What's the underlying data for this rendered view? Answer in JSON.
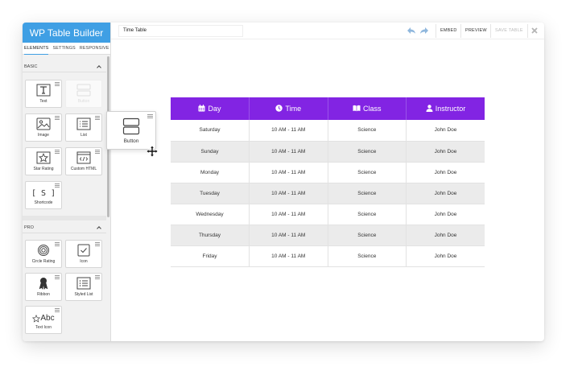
{
  "sidebar": {
    "title": "WP Table Builder",
    "tabs": [
      "ELEMENTS",
      "SETTINGS",
      "RESPONSIVE"
    ],
    "sections": [
      {
        "title": "BASIC",
        "items": [
          {
            "label": "Text",
            "icon": "text-icon"
          },
          {
            "label": "Button",
            "icon": "button-icon"
          },
          {
            "label": "Image",
            "icon": "image-icon"
          },
          {
            "label": "List",
            "icon": "list-icon"
          },
          {
            "label": "Star Rating",
            "icon": "star-icon"
          },
          {
            "label": "Custom HTML",
            "icon": "code-icon"
          },
          {
            "label": "Shortcode",
            "icon": "shortcode-icon"
          }
        ]
      },
      {
        "title": "PRO",
        "items": [
          {
            "label": "Circle Rating",
            "icon": "circle-rating-icon"
          },
          {
            "label": "Icon",
            "icon": "checkbox-icon"
          },
          {
            "label": "Ribbon",
            "icon": "ribbon-icon"
          },
          {
            "label": "Styled List",
            "icon": "styled-list-icon"
          },
          {
            "label": "Text Icon",
            "icon": "text-icon-icon",
            "glyph": "Abc"
          }
        ]
      }
    ],
    "shortcode_glyph": "[ S ]"
  },
  "drag_ghost": {
    "label": "Button"
  },
  "topbar": {
    "table_name": "Time Table",
    "embed": "EMBED",
    "preview": "PREVIEW",
    "save": "SAVE TABLE"
  },
  "table": {
    "header_color": "#8224e3",
    "headers": [
      {
        "label": "Day",
        "icon": "calendar-icon"
      },
      {
        "label": "Time",
        "icon": "clock-icon"
      },
      {
        "label": "Class",
        "icon": "book-icon"
      },
      {
        "label": "Instructor",
        "icon": "user-icon"
      }
    ],
    "rows": [
      [
        "Saturday",
        "10 AM - 11 AM",
        "Science",
        "John Doe"
      ],
      [
        "Sunday",
        "10 AM - 11 AM",
        "Science",
        "John Doe"
      ],
      [
        "Monday",
        "10 AM - 11 AM",
        "Science",
        "John Doe"
      ],
      [
        "Tuesday",
        "10 AM - 11 AM",
        "Science",
        "John Doe"
      ],
      [
        "Wednesday",
        "10 AM - 11 AM",
        "Science",
        "John Doe"
      ],
      [
        "Thursday",
        "10 AM - 11 AM",
        "Science",
        "John Doe"
      ],
      [
        "Friday",
        "10 AM - 11 AM",
        "Science",
        "John Doe"
      ]
    ]
  },
  "colors": {
    "accent": "#3f9fe4",
    "header": "#8224e3"
  }
}
